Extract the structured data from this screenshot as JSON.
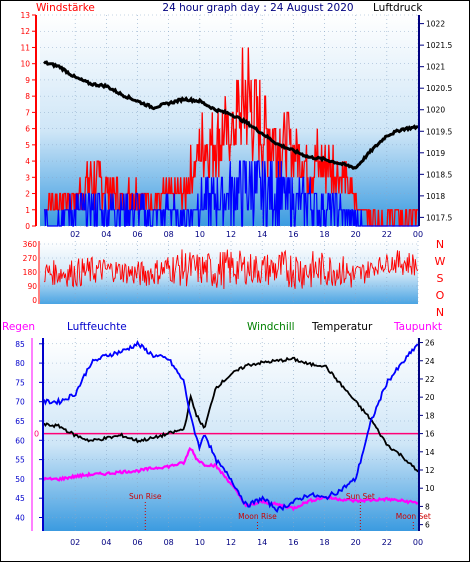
{
  "header": {
    "title": "24 hour graph day : 24 August 2020",
    "left_label": "Windstärke",
    "right_label": "Luftdruck"
  },
  "colors": {
    "wind_red": "#ff0000",
    "gust_blue": "#0000ff",
    "pressure": "#000000",
    "humidity": "#0000ff",
    "temperature": "#000000",
    "dewpoint": "#ff00ff",
    "freezing": "#ff0077",
    "axis_right": "#000080",
    "panel_top": "#ffffff",
    "panel_bottom": "#3b9be0"
  },
  "x_axis": {
    "ticks": [
      "02",
      "04",
      "06",
      "08",
      "10",
      "12",
      "14",
      "16",
      "18",
      "20",
      "22",
      "00"
    ]
  },
  "chart_data": [
    {
      "type": "line",
      "name": "wind-pressure",
      "wind_scale": {
        "ylim": [
          0,
          13
        ],
        "ticks": [
          "0",
          "1",
          "2",
          "3",
          "4",
          "5",
          "6",
          "7",
          "8",
          "9",
          "10",
          "11",
          "12",
          "13"
        ]
      },
      "pressure_scale": {
        "ylim": [
          1017.3,
          1022.2
        ],
        "ticks": [
          "1017.5",
          "1018",
          "1018.5",
          "1019",
          "1019.5",
          "1020",
          "1020.5",
          "1021",
          "1021.5",
          "1022"
        ]
      },
      "pressure": {
        "hours": [
          0,
          1,
          2,
          3,
          4,
          5,
          6,
          7,
          8,
          9,
          10,
          11,
          12,
          13,
          14,
          15,
          16,
          17,
          18,
          19,
          20,
          21,
          22,
          23,
          24
        ],
        "values": [
          1021.1,
          1021.0,
          1020.75,
          1020.6,
          1020.55,
          1020.35,
          1020.2,
          1020.05,
          1020.15,
          1020.25,
          1020.2,
          1020.0,
          1019.9,
          1019.7,
          1019.45,
          1019.2,
          1019.05,
          1018.9,
          1018.85,
          1018.75,
          1018.65,
          1019.05,
          1019.4,
          1019.55,
          1019.6
        ]
      },
      "wind_envelope": {
        "hours": [
          0,
          1,
          2,
          3,
          4,
          5,
          6,
          7,
          8,
          9,
          10,
          11,
          12,
          13,
          14,
          15,
          16,
          17,
          18,
          19,
          20,
          21,
          22,
          23,
          24
        ],
        "peak": [
          2,
          2,
          3,
          5,
          4,
          3,
          3,
          2,
          3,
          3,
          7,
          8,
          8,
          13,
          9,
          8,
          7,
          6,
          6,
          5,
          2,
          1,
          1,
          1,
          1
        ],
        "base": [
          1,
          1,
          1,
          1,
          1,
          1,
          1,
          1,
          1,
          1,
          3,
          3,
          4,
          4,
          3,
          3,
          3,
          2,
          2,
          2,
          1,
          0,
          0,
          0,
          0
        ]
      },
      "gust_envelope": {
        "hours": [
          0,
          1,
          2,
          3,
          4,
          5,
          6,
          7,
          8,
          9,
          10,
          11,
          12,
          13,
          14,
          15,
          16,
          17,
          18,
          19,
          20,
          21,
          22,
          23,
          24
        ],
        "peak": [
          1,
          1,
          2,
          2,
          2,
          2,
          2,
          1,
          2,
          1,
          3,
          3,
          4,
          5,
          4,
          4,
          3,
          3,
          2,
          2,
          1,
          0,
          0,
          0,
          0
        ]
      }
    },
    {
      "type": "line",
      "name": "wind-direction",
      "ticks": [
        "0",
        "90",
        "180",
        "270",
        "360"
      ],
      "ylim": [
        0,
        360
      ],
      "compass": [
        "N",
        "W",
        "S",
        "O",
        "N"
      ],
      "band": {
        "hours": [
          0,
          1,
          2,
          3,
          4,
          5,
          6,
          7,
          8,
          9,
          10,
          11,
          12,
          13,
          14,
          15,
          16,
          17,
          18,
          19,
          20,
          21,
          22,
          23,
          24
        ],
        "upper": [
          250,
          260,
          270,
          280,
          270,
          260,
          250,
          260,
          300,
          330,
          300,
          320,
          330,
          310,
          300,
          320,
          330,
          320,
          310,
          300,
          250,
          260,
          300,
          330,
          300
        ],
        "lower": [
          100,
          90,
          80,
          90,
          120,
          110,
          80,
          90,
          110,
          80,
          90,
          60,
          80,
          100,
          90,
          80,
          70,
          60,
          80,
          90,
          40,
          150,
          180,
          160,
          150
        ]
      }
    },
    {
      "type": "line",
      "name": "temperature-humidity",
      "left_label": "Regen",
      "hum_label": "Luftfeuchte",
      "windchill_label": "Windchill",
      "temp_label": "Temperatur",
      "dew_label": "Taupunkt",
      "hum_scale": {
        "ylim": [
          36.5,
          86.5
        ],
        "ticks": [
          "40",
          "45",
          "50",
          "55",
          "60",
          "65",
          "70",
          "75",
          "80",
          "85"
        ]
      },
      "temp_scale": {
        "ylim": [
          5.3,
          26.5
        ],
        "ticks": [
          "6",
          "8",
          "10",
          "12",
          "14",
          "16",
          "18",
          "20",
          "22",
          "24",
          "26"
        ]
      },
      "zero_label": "0",
      "zero_temp": 16,
      "humidity": {
        "hours": [
          0,
          1,
          2,
          3,
          4,
          5,
          6,
          7,
          8,
          9,
          9.4,
          9.7,
          10,
          10.3,
          11,
          12,
          13,
          14,
          15,
          16,
          17,
          18,
          19,
          20,
          21,
          22,
          23,
          24
        ],
        "values": [
          70,
          70,
          72,
          80,
          82,
          83,
          85,
          82,
          81,
          75,
          66,
          62,
          58,
          62,
          55,
          50,
          43,
          45,
          42,
          44,
          46,
          45,
          47,
          50,
          65,
          75,
          80,
          85
        ]
      },
      "temperature": {
        "hours": [
          0,
          1,
          2,
          3,
          4,
          5,
          6,
          7,
          8,
          9,
          9.4,
          9.8,
          10.3,
          11,
          12,
          13,
          14,
          15,
          16,
          17,
          18,
          19,
          20,
          21,
          22,
          23,
          24
        ],
        "values": [
          17,
          16.8,
          15.8,
          15.2,
          15.5,
          15.8,
          15.2,
          15.5,
          16.0,
          16.5,
          20.0,
          18.0,
          16.5,
          21.0,
          22.5,
          23.5,
          23.8,
          24.0,
          24.2,
          23.6,
          23.5,
          21.5,
          19.5,
          17.5,
          14.8,
          13.5,
          11.8
        ]
      },
      "dewpoint": {
        "hours": [
          0,
          1,
          2,
          3,
          4,
          5,
          6,
          7,
          8,
          9,
          9.4,
          9.8,
          10.3,
          11,
          12,
          13,
          14,
          15,
          16,
          17,
          18,
          19,
          20,
          21,
          22,
          23,
          24
        ],
        "values": [
          11.0,
          11.0,
          11.3,
          11.5,
          11.6,
          11.8,
          11.9,
          12.2,
          12.4,
          12.8,
          14.5,
          13.2,
          12.6,
          12.5,
          10.5,
          8.0,
          8.5,
          8.2,
          7.8,
          8.6,
          9.0,
          8.8,
          8.6,
          8.7,
          8.8,
          8.6,
          8.4
        ]
      },
      "annotations": [
        {
          "text": "Sun Rise",
          "hour": 6.5
        },
        {
          "text": "Moon Rise",
          "hour": 13.7
        },
        {
          "text": "Sun Set",
          "hour": 20.3
        },
        {
          "text": "Moon Set",
          "hour": 23.7
        }
      ]
    }
  ]
}
